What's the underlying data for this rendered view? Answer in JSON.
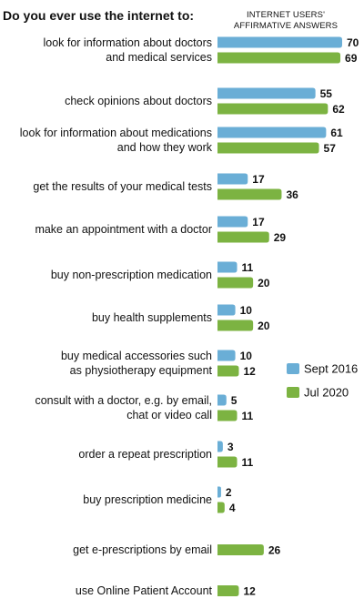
{
  "chart_data": {
    "type": "bar",
    "orientation": "horizontal",
    "title": "Do you ever use the internet to:",
    "value_header": [
      "INTERNET USERS'",
      "AFFIRMATIVE ANSWERS"
    ],
    "categories": [
      [
        "look for information about doctors",
        "and medical services"
      ],
      [
        "check opinions about doctors"
      ],
      [
        "look for information about medications",
        "and how they work"
      ],
      [
        "get the results of your medical tests"
      ],
      [
        "make an appointment with a doctor"
      ],
      [
        "buy non-prescription medication"
      ],
      [
        "buy health supplements"
      ],
      [
        "buy medical accessories such",
        "as physiotherapy equipment"
      ],
      [
        "consult with a doctor, e.g. by email,",
        "chat or video call"
      ],
      [
        "order a repeat prescription"
      ],
      [
        "buy prescription medicine"
      ],
      [
        "get e-prescriptions by email"
      ],
      [
        "use Online Patient Account"
      ]
    ],
    "series": [
      {
        "name": "Sept 2016",
        "color": "#6aaed6",
        "values": [
          70,
          55,
          61,
          17,
          17,
          11,
          10,
          10,
          5,
          3,
          2,
          null,
          null
        ]
      },
      {
        "name": "Jul 2020",
        "color": "#7cb342",
        "values": [
          69,
          62,
          57,
          36,
          29,
          20,
          20,
          12,
          11,
          11,
          4,
          26,
          12
        ]
      }
    ],
    "xlim": [
      0,
      70
    ],
    "legend_position": "right",
    "grid": false
  }
}
